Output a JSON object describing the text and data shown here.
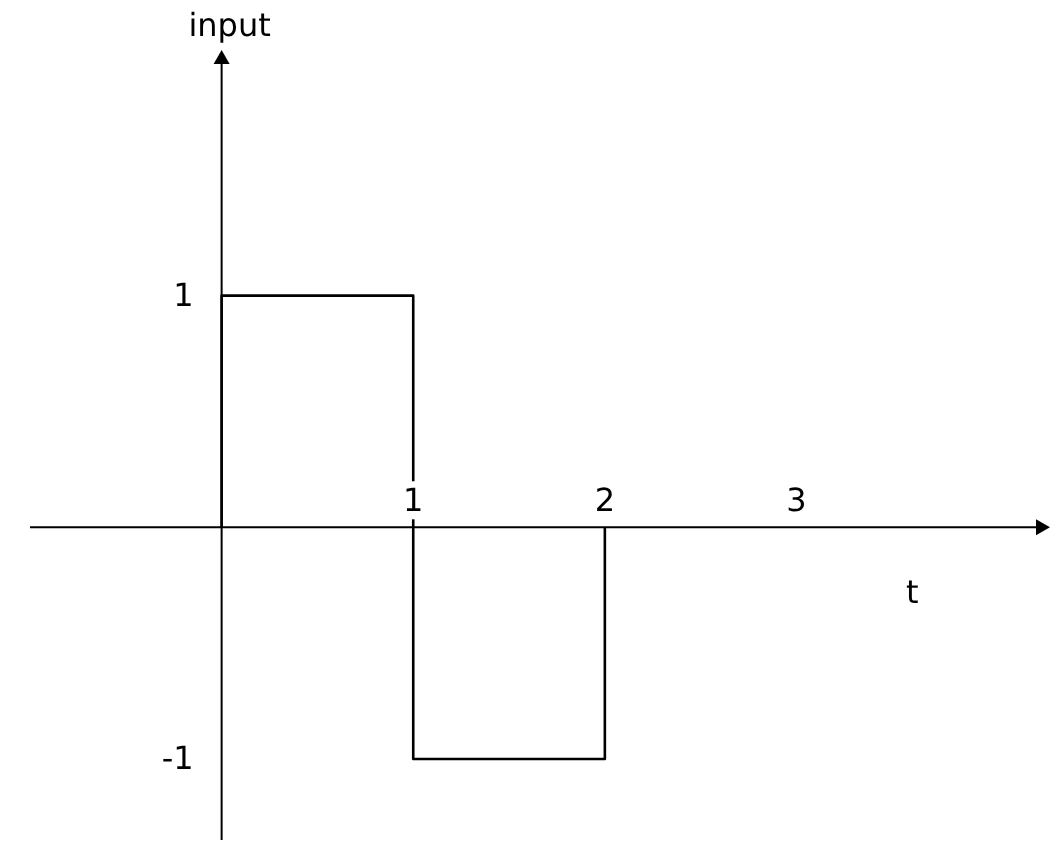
{
  "chart_data": {
    "type": "line",
    "xlabel": "t",
    "ylabel": "input",
    "x": [
      0,
      0,
      1,
      1,
      2,
      2
    ],
    "series": [
      {
        "color": "#000000",
        "values": [
          0,
          1,
          1,
          -1,
          -1,
          0
        ]
      }
    ],
    "xlim": [
      -1,
      4.25
    ],
    "xticks": [
      1,
      2,
      3
    ],
    "ylim": [
      -1.35,
      2
    ],
    "yticks": [
      -1,
      1
    ],
    "grid": false
  }
}
